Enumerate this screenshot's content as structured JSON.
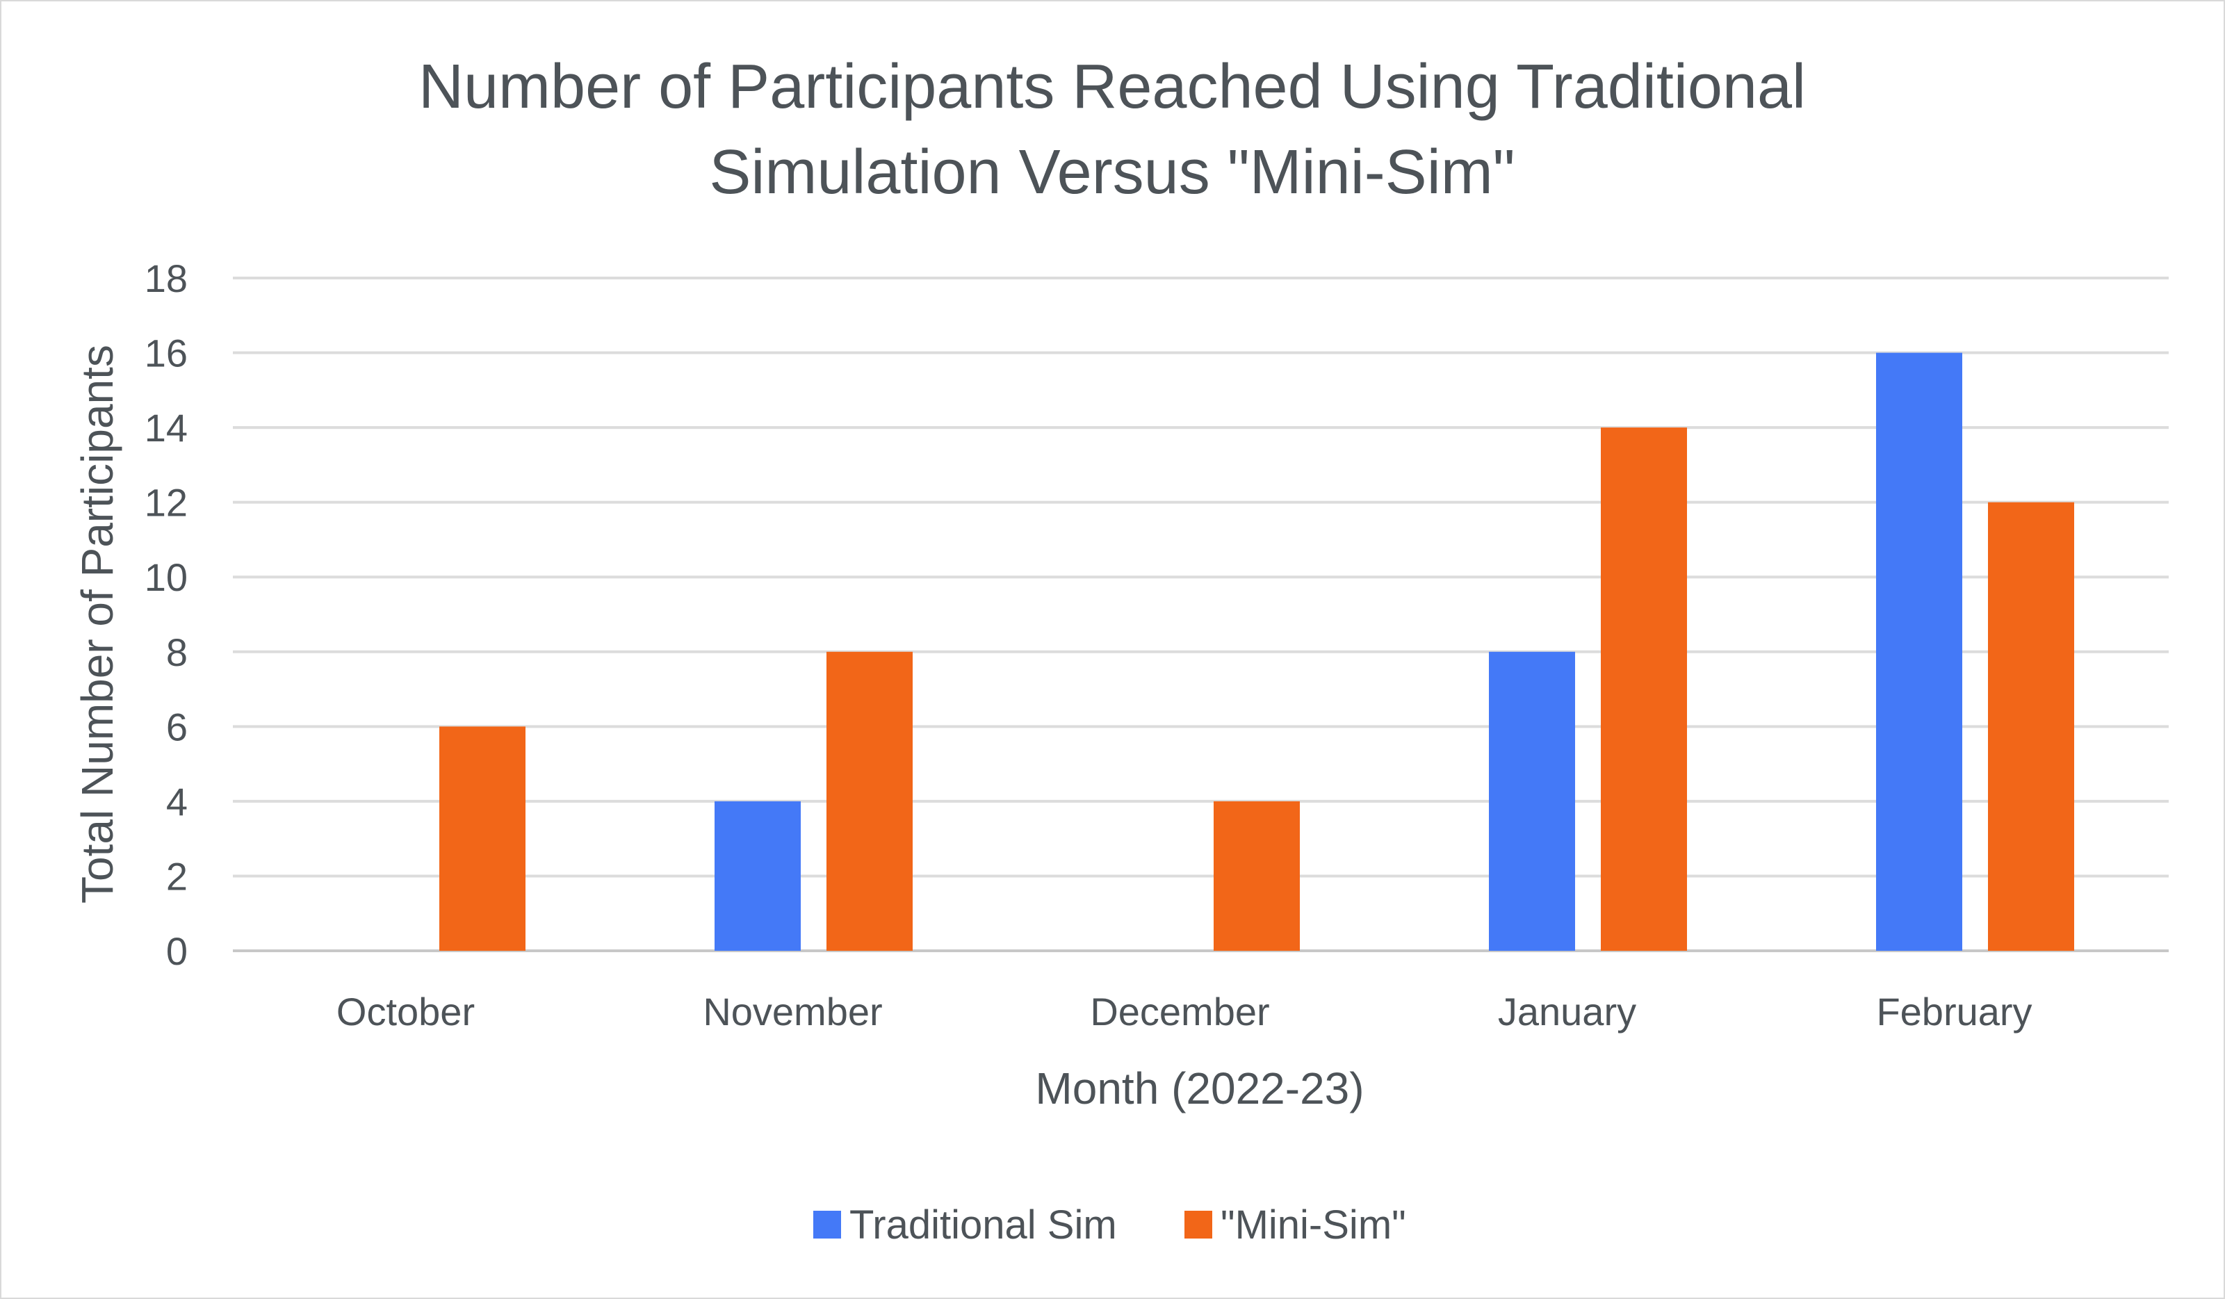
{
  "chart_data": {
    "type": "bar",
    "title_lines": [
      "Number of Participants Reached Using Traditional",
      "Simulation Versus \"Mini-Sim\""
    ],
    "xlabel": "Month (2022-23)",
    "ylabel": "Total Number of Participants",
    "categories": [
      "October",
      "November",
      "December",
      "January",
      "February"
    ],
    "series": [
      {
        "name": "Traditional Sim",
        "color": "#4479f7",
        "values": [
          0,
          4,
          0,
          8,
          16
        ]
      },
      {
        "name": "\"Mini-Sim\"",
        "color": "#f26618",
        "values": [
          6,
          8,
          4,
          14,
          12
        ]
      }
    ],
    "ylim": [
      0,
      18
    ],
    "yticks": [
      0,
      2,
      4,
      6,
      8,
      10,
      12,
      14,
      16,
      18
    ],
    "grid": true,
    "legend_position": "bottom"
  }
}
